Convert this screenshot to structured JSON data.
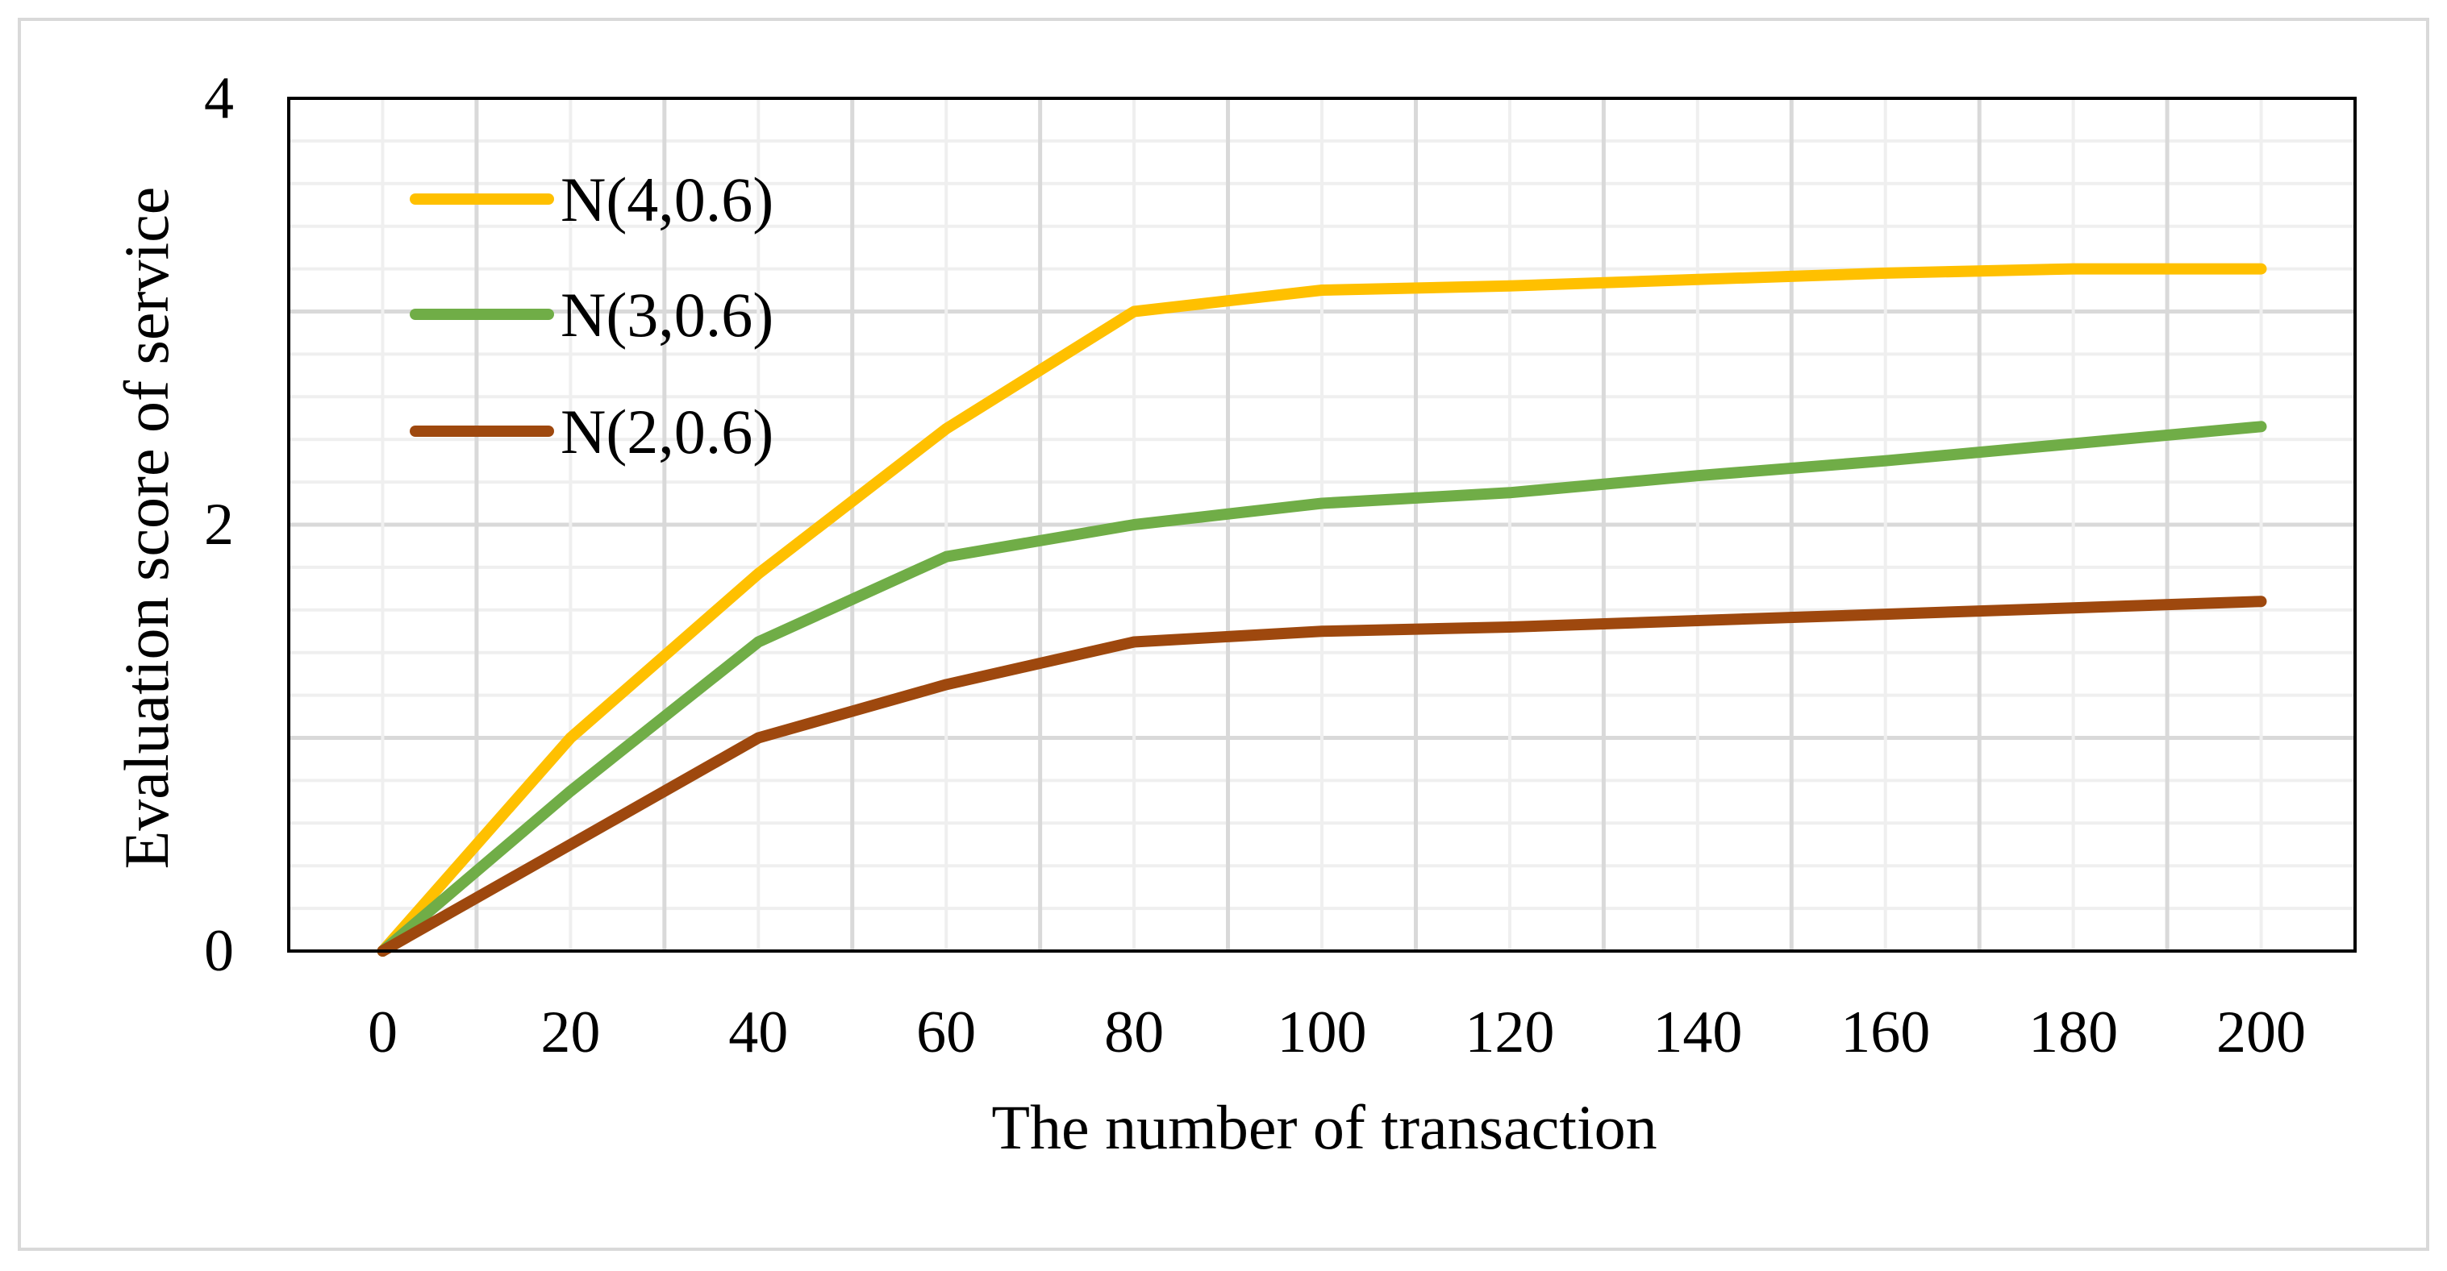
{
  "chart_data": {
    "type": "line",
    "title": "",
    "xlabel": "The number of transaction",
    "ylabel": "Evaluation score of service",
    "x": [
      0,
      20,
      40,
      60,
      80,
      100,
      120,
      140,
      160,
      180,
      200
    ],
    "x_ticks": [
      "0",
      "20",
      "40",
      "60",
      "80",
      "100",
      "120",
      "140",
      "160",
      "180",
      "200"
    ],
    "y_ticks": [
      "0",
      "2",
      "4"
    ],
    "xlim": [
      -10,
      210
    ],
    "ylim": [
      0,
      4
    ],
    "grid": true,
    "legend_position": "top-left",
    "series": [
      {
        "name": "N(4,0.6)",
        "color": "#ffc000",
        "values": [
          0,
          1.0,
          1.77,
          2.45,
          3.0,
          3.1,
          3.12,
          3.15,
          3.18,
          3.2,
          3.2
        ]
      },
      {
        "name": "N(3,0.6)",
        "color": "#70ad47",
        "values": [
          0,
          0.75,
          1.45,
          1.85,
          2.0,
          2.1,
          2.15,
          2.23,
          2.3,
          2.38,
          2.46
        ]
      },
      {
        "name": "N(2,0.6)",
        "color": "#9e480e",
        "values": [
          0,
          0.5,
          1.0,
          1.25,
          1.45,
          1.5,
          1.52,
          1.55,
          1.58,
          1.61,
          1.64
        ]
      }
    ]
  }
}
